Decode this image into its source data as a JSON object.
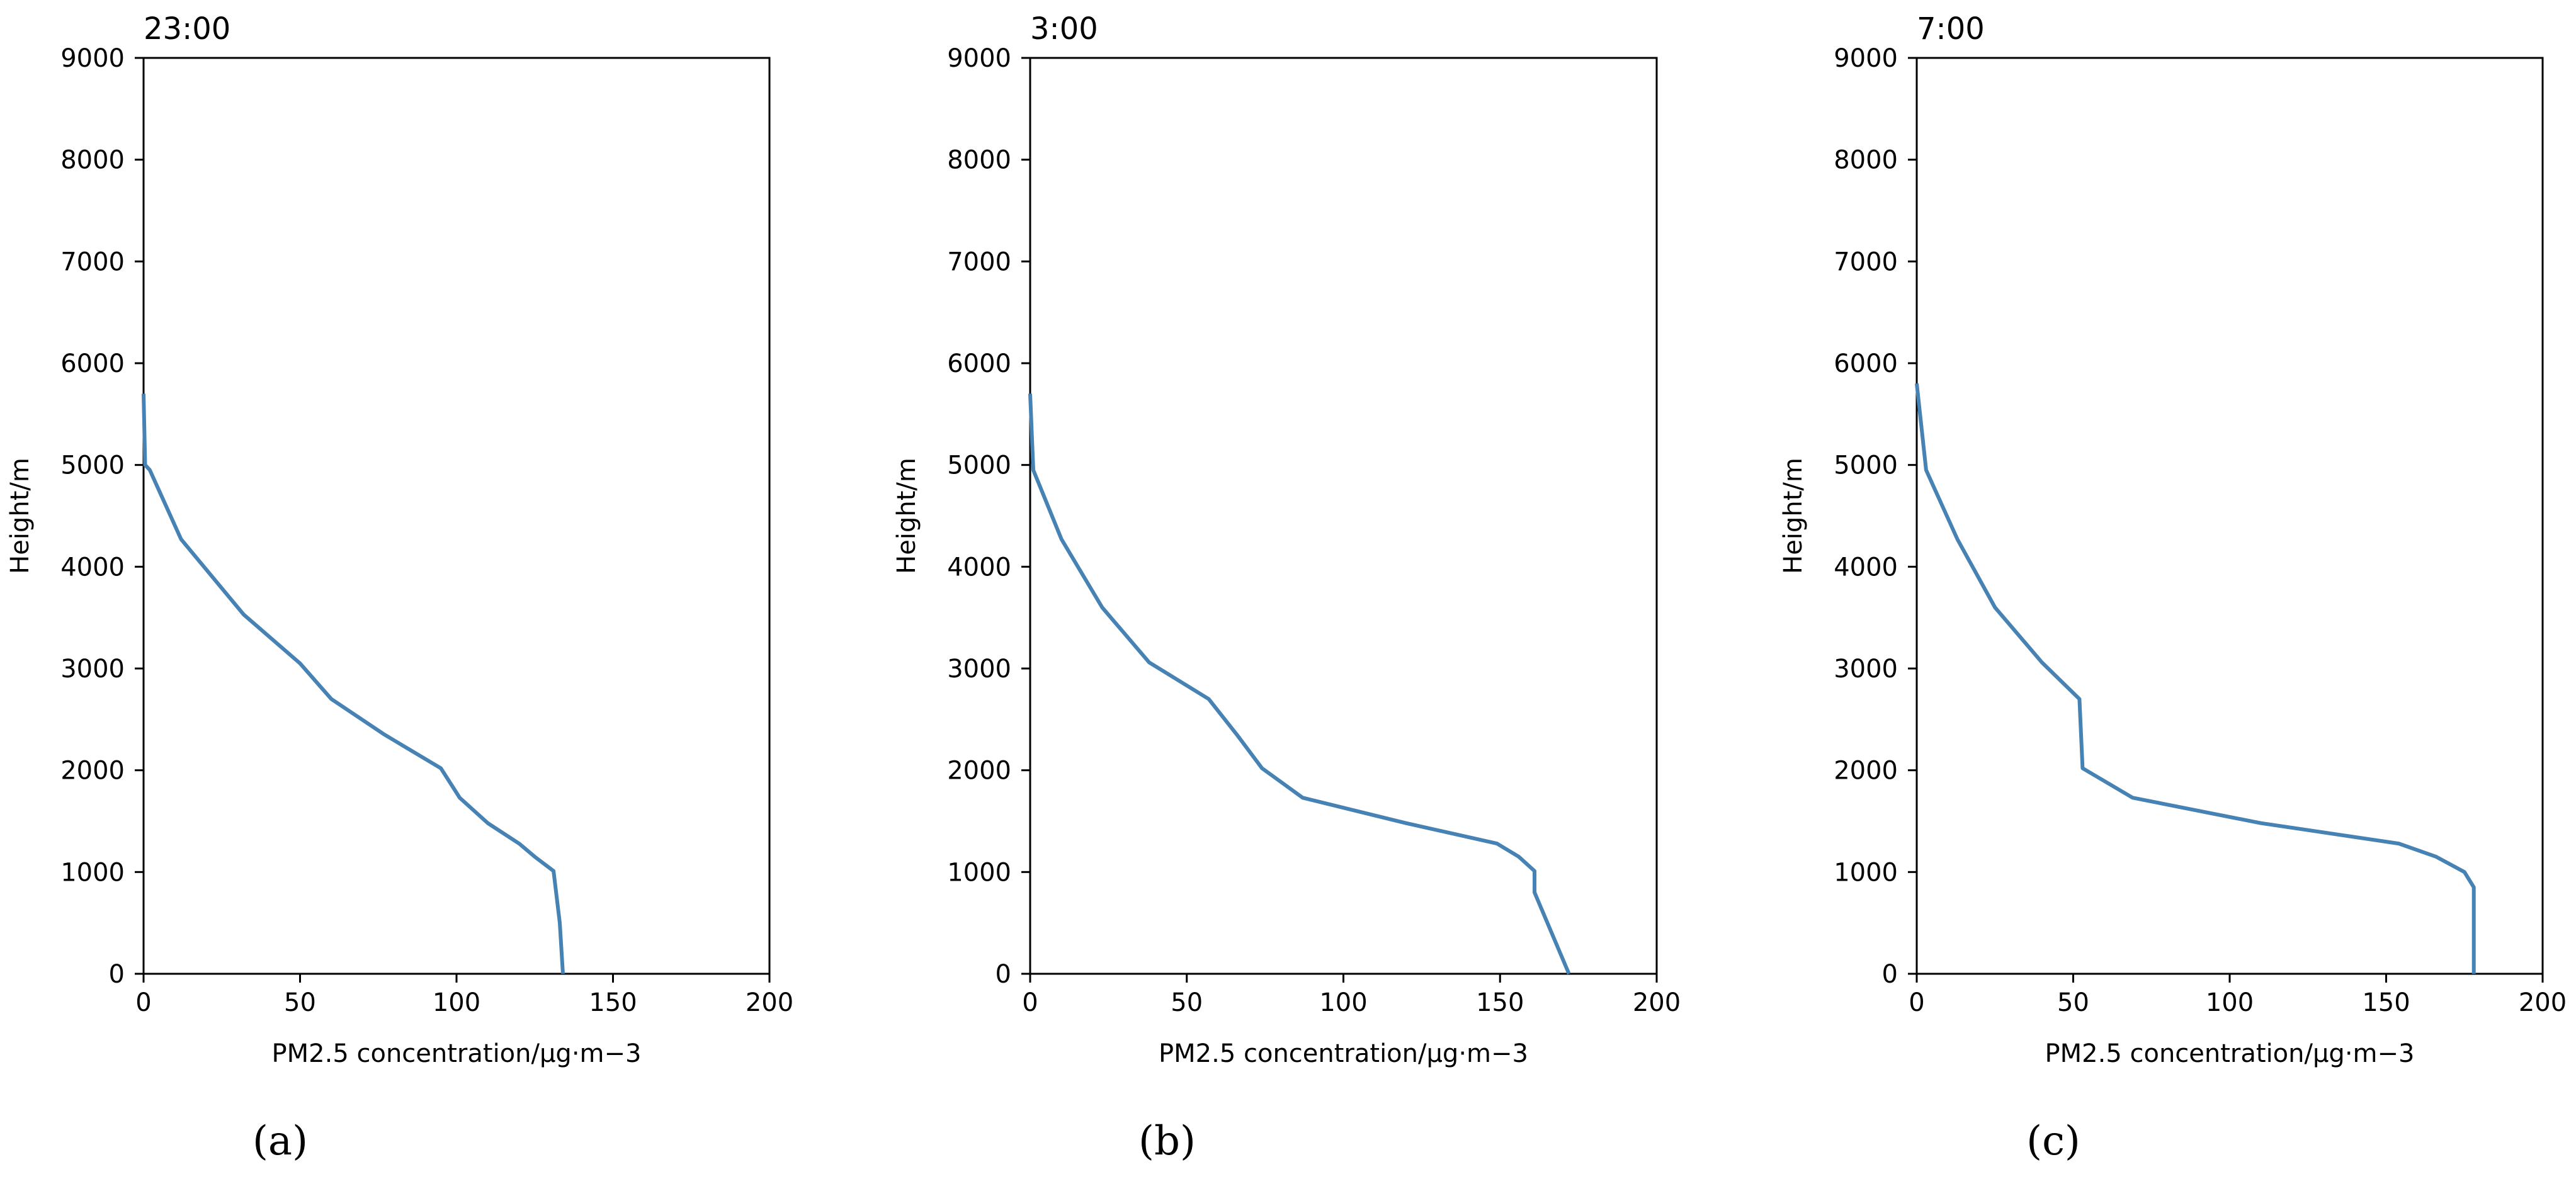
{
  "figure": {
    "line_color": "#4682b4",
    "panels": [
      {
        "title": "23:00",
        "panel_label": "(a)",
        "label_letter": "a"
      },
      {
        "title": "3:00",
        "panel_label": "(b)",
        "label_letter": "b"
      },
      {
        "title": "7:00",
        "panel_label": "(c)",
        "label_letter": "c"
      }
    ]
  },
  "chart_data": [
    {
      "type": "line",
      "title": "23:00",
      "xlabel": "PM2.5 concentration/μg·m−3",
      "ylabel": "Height/m",
      "xlim": [
        0,
        200
      ],
      "ylim": [
        0,
        9000
      ],
      "xticks": [
        0,
        50,
        100,
        150,
        200
      ],
      "yticks": [
        0,
        1000,
        2000,
        3000,
        4000,
        5000,
        6000,
        7000,
        8000,
        9000
      ],
      "grid": false,
      "series": [
        {
          "x": [
            0,
            0.5,
            2,
            12,
            32,
            50,
            60,
            77,
            95,
            101,
            110,
            120,
            125,
            131,
            133,
            134
          ],
          "y": [
            5700,
            5000,
            4950,
            4270,
            3530,
            3050,
            2700,
            2350,
            2020,
            1730,
            1480,
            1280,
            1150,
            1010,
            500,
            0
          ]
        }
      ]
    },
    {
      "type": "line",
      "title": "3:00",
      "xlabel": "PM2.5 concentration/μg·m−3",
      "ylabel": "Height/m",
      "xlim": [
        0,
        200
      ],
      "ylim": [
        0,
        9000
      ],
      "xticks": [
        0,
        50,
        100,
        150,
        200
      ],
      "yticks": [
        0,
        1000,
        2000,
        3000,
        4000,
        5000,
        6000,
        7000,
        8000,
        9000
      ],
      "grid": false,
      "series": [
        {
          "x": [
            0,
            1,
            10,
            23,
            38,
            57,
            66,
            74,
            87,
            120,
            149,
            156,
            161,
            161,
            172
          ],
          "y": [
            5700,
            4950,
            4270,
            3600,
            3060,
            2700,
            2350,
            2020,
            1730,
            1480,
            1280,
            1150,
            1010,
            800,
            0
          ]
        }
      ]
    },
    {
      "type": "line",
      "title": "7:00",
      "xlabel": "PM2.5 concentration/μg·m−3",
      "ylabel": "Height/m",
      "xlim": [
        0,
        200
      ],
      "ylim": [
        0,
        9000
      ],
      "xticks": [
        0,
        50,
        100,
        150,
        200
      ],
      "yticks": [
        0,
        1000,
        2000,
        3000,
        4000,
        5000,
        6000,
        7000,
        8000,
        9000
      ],
      "grid": false,
      "series": [
        {
          "x": [
            0,
            3,
            13,
            25,
            40,
            52,
            53,
            69,
            110,
            154,
            166,
            175,
            178,
            178
          ],
          "y": [
            5800,
            4950,
            4270,
            3600,
            3060,
            2700,
            2020,
            1730,
            1480,
            1280,
            1150,
            1000,
            850,
            0
          ]
        }
      ]
    }
  ]
}
